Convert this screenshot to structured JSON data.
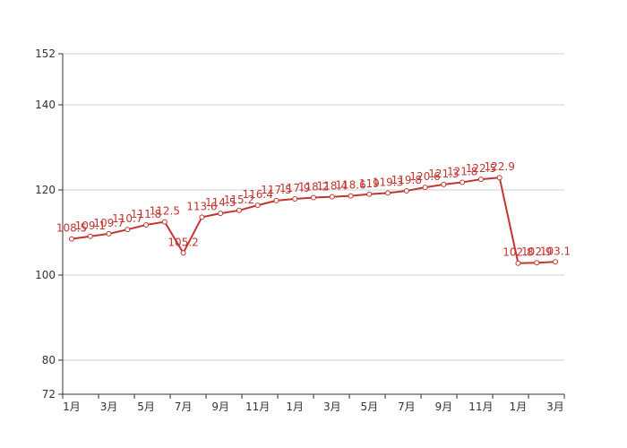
{
  "chart_data": {
    "type": "line",
    "title": "",
    "xlabel": "",
    "ylabel": "",
    "ylim": [
      72,
      152
    ],
    "yticks": [
      72,
      80,
      100,
      120,
      140,
      152
    ],
    "grid": true,
    "legend": "none",
    "x_tick_labels": [
      "1月",
      "3月",
      "5月",
      "7月",
      "9月",
      "11月",
      "1月",
      "3月",
      "5月",
      "7月",
      "9月",
      "11月",
      "1月",
      "3月"
    ],
    "series": [
      {
        "color": "#c23531",
        "values": [
          108.5,
          109.1,
          109.7,
          110.7,
          111.8,
          112.5,
          105.2,
          113.6,
          114.5,
          115.2,
          116.4,
          117.5,
          117.9,
          118.2,
          118.4,
          118.6,
          119.0,
          119.3,
          119.8,
          120.6,
          121.3,
          121.8,
          122.5,
          122.9,
          102.8,
          102.9,
          103.1
        ],
        "labels": [
          "108.5",
          "109.1",
          "109.7",
          "110.7",
          "111.8",
          "112.5",
          "105.2",
          "113.6",
          "114.5",
          "115.2",
          "116.4",
          "117.5",
          "117.9",
          "118.2",
          "118.4",
          "118.6",
          "119",
          "119.3",
          "119.8",
          "120.6",
          "121.3",
          "121.8",
          "122.5",
          "122.9",
          "102.8",
          "102.9",
          "103.1"
        ]
      }
    ]
  }
}
